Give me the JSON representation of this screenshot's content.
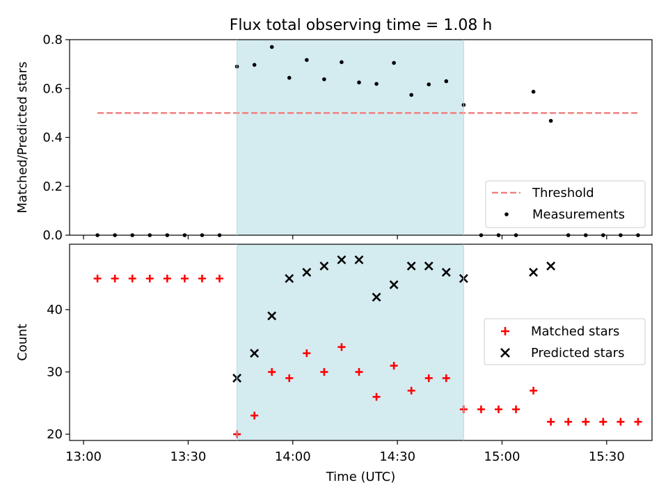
{
  "chart_data": [
    {
      "type": "scatter",
      "title": "Flux total observing time = 1.08 h",
      "xlabel": "",
      "ylabel": "Matched/Predicted stars",
      "xlim": [
        "12:56",
        "15:43"
      ],
      "ylim": [
        0,
        0.8
      ],
      "yticks": [
        0.0,
        0.2,
        0.4,
        0.6,
        0.8
      ],
      "ytick_labels": [
        "0.0",
        "0.2",
        "0.4",
        "0.6",
        "0.8"
      ],
      "xticks": [
        "13:00",
        "13:30",
        "14:00",
        "14:30",
        "15:00",
        "15:30"
      ],
      "shaded_interval": [
        "13:44",
        "14:49"
      ],
      "shaded_color": "#d4ebf0",
      "legend_position": "lower right",
      "series": [
        {
          "name": "Threshold",
          "kind": "dashed-line",
          "color": "#f08080",
          "points": [
            {
              "x": "13:04",
              "y": 0.5
            },
            {
              "x": "15:39",
              "y": 0.5
            }
          ]
        },
        {
          "name": "Measurements",
          "kind": "dot",
          "color": "#000000",
          "points": [
            {
              "x": "13:04",
              "y": 0.0
            },
            {
              "x": "13:09",
              "y": 0.0
            },
            {
              "x": "13:14",
              "y": 0.0
            },
            {
              "x": "13:19",
              "y": 0.0
            },
            {
              "x": "13:24",
              "y": 0.0
            },
            {
              "x": "13:29",
              "y": 0.0
            },
            {
              "x": "13:34",
              "y": 0.0
            },
            {
              "x": "13:39",
              "y": 0.0
            },
            {
              "x": "13:44",
              "y": 0.69
            },
            {
              "x": "13:49",
              "y": 0.697
            },
            {
              "x": "13:54",
              "y": 0.77
            },
            {
              "x": "13:59",
              "y": 0.644
            },
            {
              "x": "14:04",
              "y": 0.717
            },
            {
              "x": "14:09",
              "y": 0.638
            },
            {
              "x": "14:14",
              "y": 0.708
            },
            {
              "x": "14:19",
              "y": 0.625
            },
            {
              "x": "14:24",
              "y": 0.619
            },
            {
              "x": "14:29",
              "y": 0.705
            },
            {
              "x": "14:34",
              "y": 0.574
            },
            {
              "x": "14:39",
              "y": 0.617
            },
            {
              "x": "14:44",
              "y": 0.63
            },
            {
              "x": "14:49",
              "y": 0.533
            },
            {
              "x": "14:54",
              "y": 0.0
            },
            {
              "x": "14:59",
              "y": 0.0
            },
            {
              "x": "15:04",
              "y": 0.0
            },
            {
              "x": "15:09",
              "y": 0.587
            },
            {
              "x": "15:14",
              "y": 0.468
            },
            {
              "x": "15:19",
              "y": 0.0
            },
            {
              "x": "15:24",
              "y": 0.0
            },
            {
              "x": "15:29",
              "y": 0.0
            },
            {
              "x": "15:34",
              "y": 0.0
            },
            {
              "x": "15:39",
              "y": 0.0
            }
          ]
        }
      ]
    },
    {
      "type": "scatter",
      "title": "",
      "xlabel": "Time (UTC)",
      "ylabel": "Count",
      "xlim": [
        "12:56",
        "15:43"
      ],
      "ylim": [
        19,
        50.5
      ],
      "yticks": [
        20,
        30,
        40
      ],
      "ytick_labels": [
        "20",
        "30",
        "40"
      ],
      "xticks": [
        "13:00",
        "13:30",
        "14:00",
        "14:30",
        "15:00",
        "15:30"
      ],
      "xtick_labels": [
        "13:00",
        "13:30",
        "14:00",
        "14:30",
        "15:00",
        "15:30"
      ],
      "shaded_interval": [
        "13:44",
        "14:49"
      ],
      "shaded_color": "#d4ebf0",
      "legend_position": "center right",
      "series": [
        {
          "name": "Matched stars",
          "kind": "plus",
          "color": "#ff0000",
          "points": [
            {
              "x": "13:04",
              "y": 45
            },
            {
              "x": "13:09",
              "y": 45
            },
            {
              "x": "13:14",
              "y": 45
            },
            {
              "x": "13:19",
              "y": 45
            },
            {
              "x": "13:24",
              "y": 45
            },
            {
              "x": "13:29",
              "y": 45
            },
            {
              "x": "13:34",
              "y": 45
            },
            {
              "x": "13:39",
              "y": 45
            },
            {
              "x": "13:44",
              "y": 20
            },
            {
              "x": "13:49",
              "y": 23
            },
            {
              "x": "13:54",
              "y": 30
            },
            {
              "x": "13:59",
              "y": 29
            },
            {
              "x": "14:04",
              "y": 33
            },
            {
              "x": "14:09",
              "y": 30
            },
            {
              "x": "14:14",
              "y": 34
            },
            {
              "x": "14:19",
              "y": 30
            },
            {
              "x": "14:24",
              "y": 26
            },
            {
              "x": "14:29",
              "y": 31
            },
            {
              "x": "14:34",
              "y": 27
            },
            {
              "x": "14:39",
              "y": 29
            },
            {
              "x": "14:44",
              "y": 29
            },
            {
              "x": "14:49",
              "y": 24
            },
            {
              "x": "14:54",
              "y": 24
            },
            {
              "x": "14:59",
              "y": 24
            },
            {
              "x": "15:04",
              "y": 24
            },
            {
              "x": "15:09",
              "y": 27
            },
            {
              "x": "15:14",
              "y": 22
            },
            {
              "x": "15:19",
              "y": 22
            },
            {
              "x": "15:24",
              "y": 22
            },
            {
              "x": "15:29",
              "y": 22
            },
            {
              "x": "15:34",
              "y": 22
            },
            {
              "x": "15:39",
              "y": 22
            }
          ]
        },
        {
          "name": "Predicted stars",
          "kind": "cross",
          "color": "#000000",
          "points": [
            {
              "x": "13:44",
              "y": 29
            },
            {
              "x": "13:49",
              "y": 33
            },
            {
              "x": "13:54",
              "y": 39
            },
            {
              "x": "13:59",
              "y": 45
            },
            {
              "x": "14:04",
              "y": 46
            },
            {
              "x": "14:09",
              "y": 47
            },
            {
              "x": "14:14",
              "y": 48
            },
            {
              "x": "14:19",
              "y": 48
            },
            {
              "x": "14:24",
              "y": 42
            },
            {
              "x": "14:29",
              "y": 44
            },
            {
              "x": "14:34",
              "y": 47
            },
            {
              "x": "14:39",
              "y": 47
            },
            {
              "x": "14:44",
              "y": 46
            },
            {
              "x": "14:49",
              "y": 45
            },
            {
              "x": "15:09",
              "y": 46
            },
            {
              "x": "15:14",
              "y": 47
            }
          ]
        }
      ]
    }
  ]
}
